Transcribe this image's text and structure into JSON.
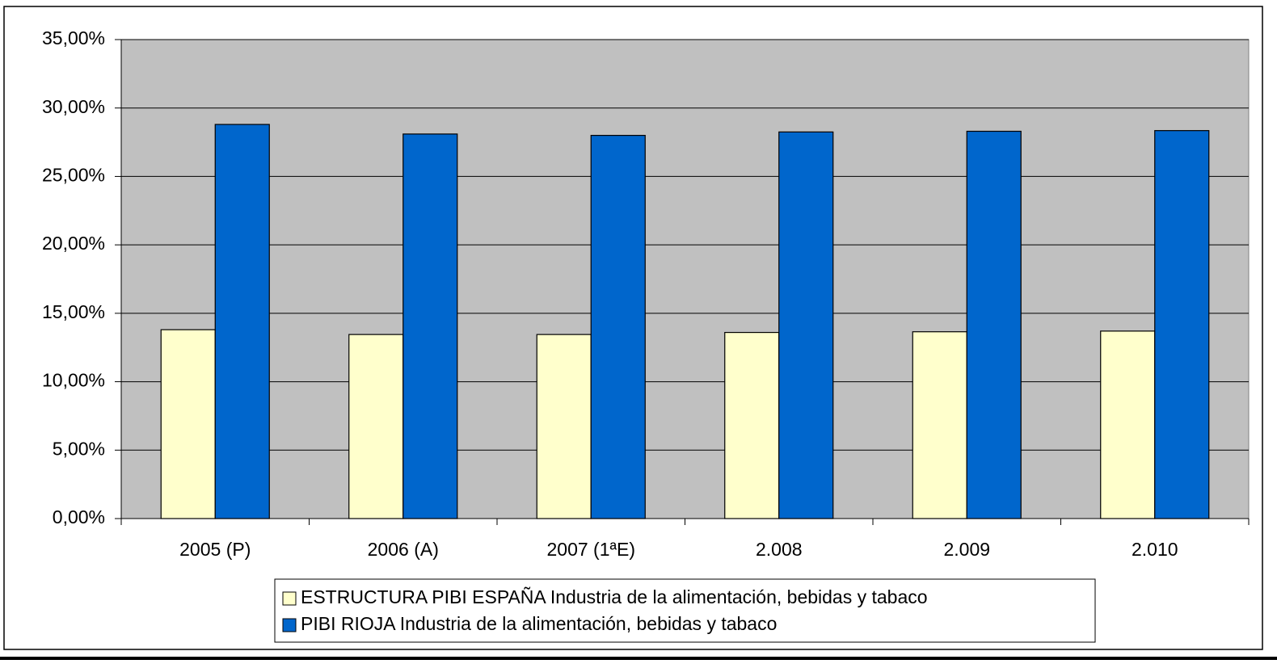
{
  "chart_data": {
    "type": "bar",
    "categories": [
      "2005 (P)",
      "2006 (A)",
      "2007 (1ªE)",
      "2.008",
      "2.009",
      "2.010"
    ],
    "series": [
      {
        "name": "ESTRUCTURA PIBI ESPAÑA Industria de la alimentación, bebidas y tabaco",
        "color": "#ffffcc",
        "values": [
          13.8,
          13.45,
          13.45,
          13.6,
          13.65,
          13.7
        ]
      },
      {
        "name": "PIBI RIOJA Industria de la alimentación, bebidas y tabaco",
        "color": "#0066cc",
        "values": [
          28.8,
          28.1,
          28.0,
          28.25,
          28.3,
          28.35
        ]
      }
    ],
    "ylim": [
      0,
      35
    ],
    "yticks": [
      {
        "value": 0,
        "label": "0,00%"
      },
      {
        "value": 5,
        "label": "5,00%"
      },
      {
        "value": 10,
        "label": "10,00%"
      },
      {
        "value": 15,
        "label": "15,00%"
      },
      {
        "value": 20,
        "label": "20,00%"
      },
      {
        "value": 25,
        "label": "25,00%"
      },
      {
        "value": 30,
        "label": "30,00%"
      },
      {
        "value": 35,
        "label": "35,00%"
      }
    ],
    "grid": true,
    "plot_background": "#c0c0c0"
  }
}
